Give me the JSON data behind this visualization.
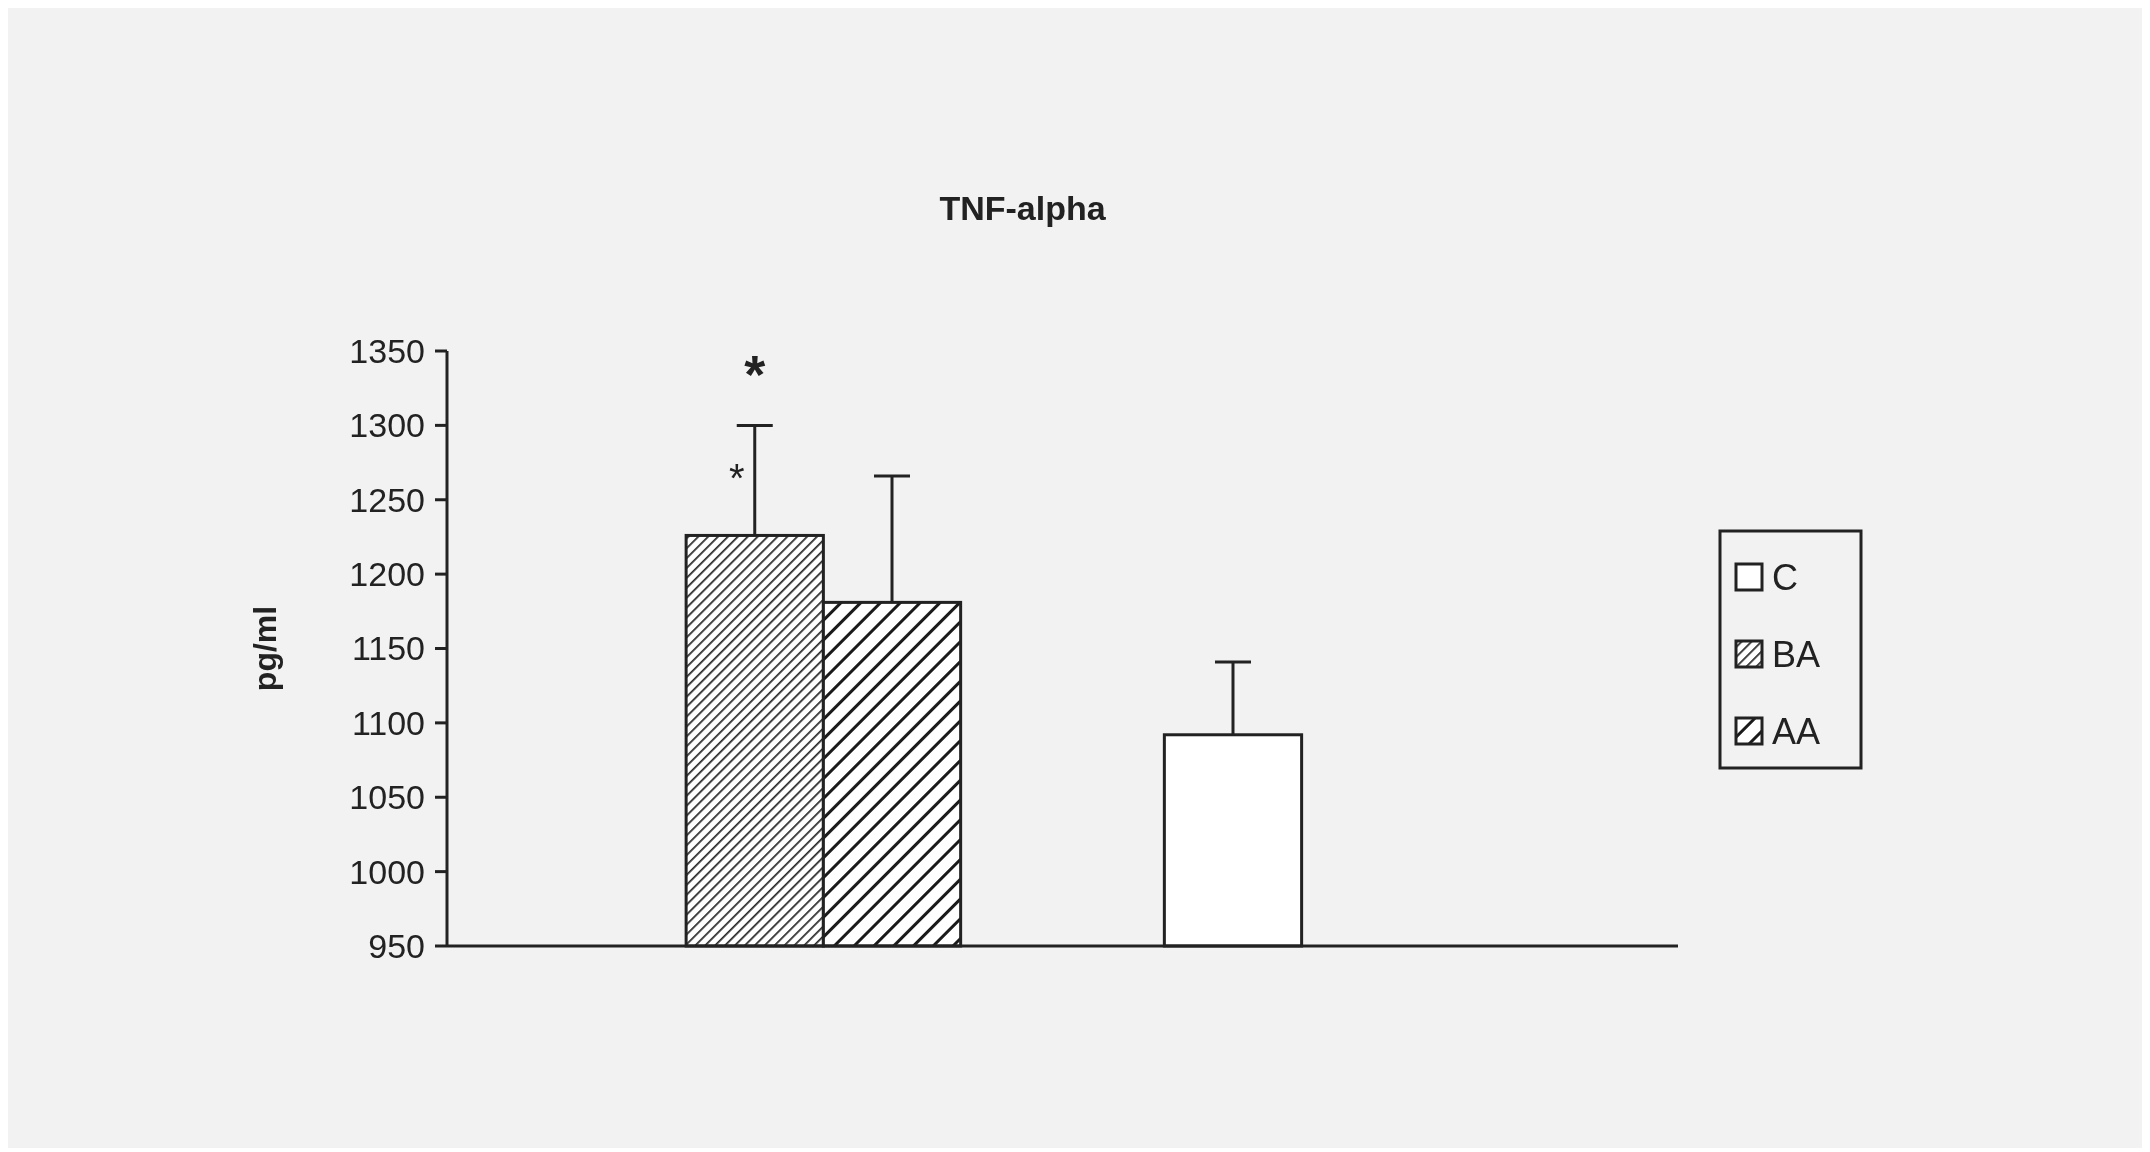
{
  "chart_data": {
    "type": "bar",
    "title": "TNF-alpha",
    "ylabel": "pg/ml",
    "categories": [
      null,
      null
    ],
    "series": [
      {
        "name": "C",
        "color": "#ffffff",
        "values": [
          null,
          1092
        ],
        "errors": [
          null,
          49
        ]
      },
      {
        "name": "BA",
        "color": "#2a2a2a",
        "values": [
          1226,
          null
        ],
        "errors": [
          74,
          null
        ]
      },
      {
        "name": "AA",
        "color": "#1a1a1a",
        "values": [
          1181,
          null
        ],
        "errors": [
          85,
          null
        ]
      }
    ],
    "ylim": [
      950,
      1350
    ],
    "yticks": [
      950,
      1000,
      1050,
      1100,
      1150,
      1200,
      1250,
      1300,
      1350
    ],
    "tick_labels": "y",
    "grid": false,
    "legend": "right",
    "annotations": [
      "*",
      "*"
    ]
  }
}
